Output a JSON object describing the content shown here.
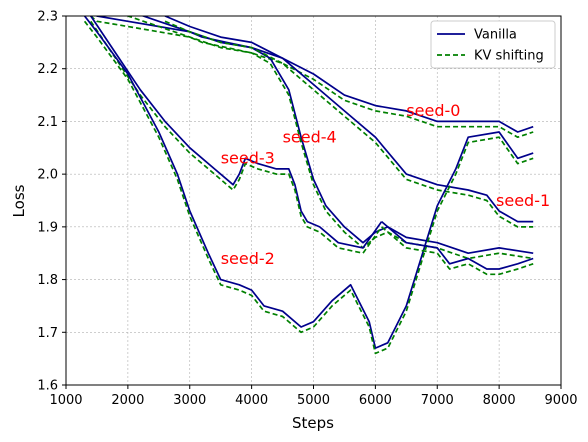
{
  "chart_data": {
    "type": "line",
    "title": "",
    "xlabel": "Steps",
    "ylabel": "Loss",
    "xlim": [
      1000,
      9000
    ],
    "ylim": [
      1.6,
      2.3
    ],
    "xticks": [
      "1000",
      "2000",
      "3000",
      "4000",
      "5000",
      "6000",
      "7000",
      "8000",
      "9000"
    ],
    "yticks": [
      "1.6",
      "1.7",
      "1.8",
      "1.9",
      "2.0",
      "2.1",
      "2.2",
      "2.3"
    ],
    "grid": true,
    "legend": {
      "position": "top-right",
      "entries": [
        {
          "label": "Vanilla",
          "color": "#00008b",
          "style": "solid"
        },
        {
          "label": "KV shifting",
          "color": "#008000",
          "style": "dashed"
        }
      ]
    },
    "annotations": [
      {
        "text": "seed-0",
        "x": 6500,
        "y": 2.11,
        "color": "#ff0000"
      },
      {
        "text": "seed-4",
        "x": 4500,
        "y": 2.06,
        "color": "#ff0000"
      },
      {
        "text": "seed-3",
        "x": 3500,
        "y": 2.02,
        "color": "#ff0000"
      },
      {
        "text": "seed-1",
        "x": 7950,
        "y": 1.94,
        "color": "#ff0000"
      },
      {
        "text": "seed-2",
        "x": 3500,
        "y": 1.83,
        "color": "#ff0000"
      }
    ],
    "series": [
      {
        "group": "seed-0",
        "variant": "Vanilla",
        "color": "#00008b",
        "dash": "none",
        "x": [
          1200,
          1500,
          2000,
          2500,
          3000,
          3200,
          3600,
          4000,
          4500,
          5000,
          5500,
          6000,
          6500,
          7000,
          7500,
          8000,
          8300,
          8550
        ],
        "y": [
          2.33,
          2.3,
          2.29,
          2.28,
          2.27,
          2.26,
          2.25,
          2.24,
          2.22,
          2.19,
          2.15,
          2.13,
          2.12,
          2.1,
          2.1,
          2.1,
          2.08,
          2.09
        ]
      },
      {
        "group": "seed-0",
        "variant": "KV shifting",
        "color": "#008000",
        "dash": "5,3",
        "x": [
          1200,
          1500,
          2000,
          2500,
          3000,
          3200,
          3600,
          4000,
          4500,
          5000,
          5500,
          6000,
          6500,
          7000,
          7500,
          8000,
          8300,
          8550
        ],
        "y": [
          2.32,
          2.29,
          2.28,
          2.27,
          2.26,
          2.25,
          2.24,
          2.23,
          2.21,
          2.18,
          2.14,
          2.12,
          2.11,
          2.09,
          2.09,
          2.09,
          2.07,
          2.08
        ]
      },
      {
        "group": "seed-4",
        "variant": "Vanilla",
        "color": "#00008b",
        "dash": "none",
        "x": [
          1500,
          2000,
          2500,
          3000,
          3500,
          4000,
          4300,
          4600,
          4800,
          5000,
          5200,
          5500,
          5800,
          6000,
          6200,
          6500,
          7000,
          7500,
          8000,
          8550
        ],
        "y": [
          2.33,
          2.31,
          2.29,
          2.27,
          2.25,
          2.24,
          2.22,
          2.16,
          2.07,
          1.99,
          1.94,
          1.9,
          1.87,
          1.89,
          1.9,
          1.88,
          1.87,
          1.85,
          1.86,
          1.85
        ]
      },
      {
        "group": "seed-4",
        "variant": "KV shifting",
        "color": "#008000",
        "dash": "5,3",
        "x": [
          1500,
          2000,
          2500,
          3000,
          3500,
          4000,
          4300,
          4600,
          4800,
          5000,
          5200,
          5500,
          5800,
          6000,
          6200,
          6500,
          7000,
          7500,
          8000,
          8550
        ],
        "y": [
          2.32,
          2.3,
          2.28,
          2.26,
          2.24,
          2.23,
          2.21,
          2.15,
          2.06,
          1.98,
          1.93,
          1.89,
          1.86,
          1.88,
          1.89,
          1.87,
          1.86,
          1.84,
          1.85,
          1.84
        ]
      },
      {
        "group": "seed-3",
        "variant": "Vanilla",
        "color": "#00008b",
        "dash": "none",
        "x": [
          1400,
          1800,
          2200,
          2600,
          3000,
          3400,
          3700,
          3800,
          3900,
          4100,
          4400,
          4600,
          4700,
          4800,
          4900,
          5100,
          5400,
          5800,
          6100
        ],
        "y": [
          2.3,
          2.23,
          2.16,
          2.1,
          2.05,
          2.01,
          1.98,
          2.0,
          2.03,
          2.02,
          2.01,
          2.01,
          1.98,
          1.93,
          1.91,
          1.9,
          1.87,
          1.86,
          1.91
        ]
      },
      {
        "group": "seed-3",
        "variant": "KV shifting",
        "color": "#008000",
        "dash": "5,3",
        "x": [
          1400,
          1800,
          2200,
          2600,
          3000,
          3400,
          3700,
          3800,
          3900,
          4100,
          4400,
          4600,
          4700,
          4800,
          4900,
          5100,
          5400,
          5800,
          6100
        ],
        "y": [
          2.29,
          2.22,
          2.15,
          2.09,
          2.04,
          2.0,
          1.97,
          1.99,
          2.02,
          2.01,
          2.0,
          2.0,
          1.97,
          1.92,
          1.9,
          1.89,
          1.86,
          1.85,
          1.9
        ]
      },
      {
        "group": "seed-1",
        "variant": "Vanilla",
        "color": "#00008b",
        "dash": "none",
        "x": [
          2600,
          3000,
          3500,
          4000,
          4500,
          5000,
          5500,
          6000,
          6500,
          7000,
          7500,
          7800,
          8000,
          8300,
          8550
        ],
        "y": [
          2.3,
          2.28,
          2.26,
          2.25,
          2.22,
          2.17,
          2.12,
          2.07,
          2.0,
          1.98,
          1.97,
          1.96,
          1.93,
          1.91,
          1.91
        ]
      },
      {
        "group": "seed-1",
        "variant": "KV shifting",
        "color": "#008000",
        "dash": "5,3",
        "x": [
          2600,
          3000,
          3500,
          4000,
          4500,
          5000,
          5500,
          6000,
          6500,
          7000,
          7500,
          7800,
          8000,
          8300,
          8550
        ],
        "y": [
          2.29,
          2.27,
          2.25,
          2.24,
          2.21,
          2.16,
          2.11,
          2.06,
          1.99,
          1.97,
          1.96,
          1.95,
          1.92,
          1.9,
          1.9
        ]
      },
      {
        "group": "seed-2",
        "variant": "Vanilla",
        "color": "#00008b",
        "dash": "none",
        "x": [
          1300,
          1500,
          2000,
          2500,
          2800,
          3000,
          3300,
          3500,
          3800,
          4000,
          4200,
          4500,
          4800,
          5000,
          5300,
          5600,
          5900,
          6000,
          6200,
          6500,
          7000,
          7300,
          7500,
          8000,
          8300,
          8550
        ],
        "y": [
          2.3,
          2.27,
          2.19,
          2.08,
          2.0,
          1.93,
          1.85,
          1.8,
          1.79,
          1.78,
          1.75,
          1.74,
          1.71,
          1.72,
          1.76,
          1.79,
          1.72,
          1.67,
          1.68,
          1.75,
          1.94,
          2.01,
          2.07,
          2.08,
          2.03,
          2.04
        ]
      },
      {
        "group": "seed-2",
        "variant": "KV shifting",
        "color": "#008000",
        "dash": "5,3",
        "x": [
          1300,
          1500,
          2000,
          2500,
          2800,
          3000,
          3300,
          3500,
          3800,
          4000,
          4200,
          4500,
          4800,
          5000,
          5300,
          5600,
          5900,
          6000,
          6200,
          6500,
          7000,
          7300,
          7500,
          8000,
          8300,
          8550
        ],
        "y": [
          2.29,
          2.26,
          2.18,
          2.07,
          1.99,
          1.92,
          1.84,
          1.79,
          1.78,
          1.77,
          1.74,
          1.73,
          1.7,
          1.71,
          1.75,
          1.78,
          1.71,
          1.66,
          1.67,
          1.74,
          1.93,
          2.0,
          2.06,
          2.07,
          2.02,
          2.03
        ]
      },
      {
        "group": "seed-2-tail",
        "variant": "Vanilla",
        "color": "#00008b",
        "dash": "none",
        "x": [
          6100,
          6500,
          7000,
          7200,
          7500,
          7800,
          8000,
          8300,
          8550
        ],
        "y": [
          1.91,
          1.87,
          1.86,
          1.83,
          1.84,
          1.82,
          1.82,
          1.83,
          1.84
        ]
      },
      {
        "group": "seed-2-tail",
        "variant": "KV shifting",
        "color": "#008000",
        "dash": "5,3",
        "x": [
          6100,
          6500,
          7000,
          7200,
          7500,
          7800,
          8000,
          8300,
          8550
        ],
        "y": [
          1.9,
          1.86,
          1.85,
          1.82,
          1.83,
          1.81,
          1.81,
          1.82,
          1.83
        ]
      }
    ]
  }
}
